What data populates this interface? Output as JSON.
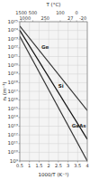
{
  "chart_data": {
    "type": "line",
    "log": "y",
    "grid": true,
    "title": "T (°C)",
    "xlabel": "1000/T (K⁻¹)",
    "ylabel": "nᵢ (m⁻³)",
    "x": [
      0.5,
      4.0
    ],
    "series": [
      {
        "name": "Ge",
        "color": "#333333",
        "values": [
          3.1622776601683796e+24,
          630957344480194.2
        ]
      },
      {
        "name": "Si",
        "color": "#111111",
        "values": [
          1e+24,
          316227766016.83795
        ]
      },
      {
        "name": "GaAs",
        "color": "#333333",
        "values": [
          1.9952623149688794e+23,
          1000000000.0
        ]
      }
    ],
    "xlim": [
      0.5,
      4.0
    ],
    "ylim": [
      1000000000.0,
      1e+25
    ],
    "xticks": [
      0.5,
      1,
      1.5,
      2,
      2.5,
      3,
      3.5,
      4
    ],
    "yticks": [
      {
        "value": 1000000000.0,
        "label": "10⁹"
      },
      {
        "value": 10000000000.0,
        "label": "10¹⁰"
      },
      {
        "value": 100000000000.0,
        "label": "10¹¹"
      },
      {
        "value": 1000000000000.0,
        "label": "10¹²"
      },
      {
        "value": 10000000000000.0,
        "label": "10¹³"
      },
      {
        "value": 100000000000000.0,
        "label": "10¹⁴"
      },
      {
        "value": 1000000000000000.0,
        "label": "10¹⁵"
      },
      {
        "value": 1e+16,
        "label": "10¹⁶"
      },
      {
        "value": 1e+17,
        "label": "10¹⁷"
      },
      {
        "value": 1e+18,
        "label": "10¹⁸"
      },
      {
        "value": 1e+19,
        "label": "10¹⁹"
      },
      {
        "value": 1e+20,
        "label": "10²⁰"
      },
      {
        "value": 1e+21,
        "label": "10²¹"
      },
      {
        "value": 1e+22,
        "label": "10²²"
      },
      {
        "value": 1e+23,
        "label": "10²³"
      },
      {
        "value": 1e+24,
        "label": "10²⁴"
      },
      {
        "value": 1e+25,
        "label": "10²⁵"
      }
    ],
    "x2lim": [
      0.5,
      4.0
    ],
    "x2ticks": [
      {
        "value": 0.577,
        "label": "1500"
      },
      {
        "value": 0.769,
        "label": "1000"
      },
      {
        "value": 1.176,
        "label": "500"
      },
      {
        "value": 1.818,
        "label": "250"
      },
      {
        "value": 2.597,
        "label": "100"
      },
      {
        "value": 3.125,
        "label": "27"
      },
      {
        "value": 3.448,
        "label": "0"
      },
      {
        "value": 3.774,
        "label": "-20"
      }
    ]
  }
}
